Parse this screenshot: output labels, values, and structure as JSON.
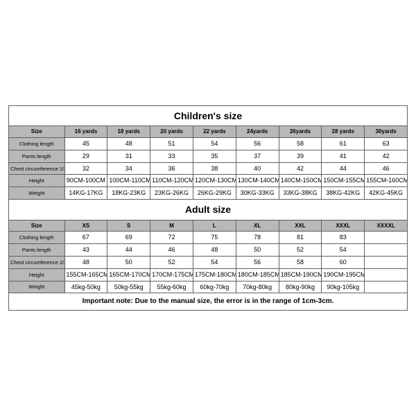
{
  "children": {
    "title": "Children's size",
    "headers": [
      "Size",
      "16 yards",
      "18 yards",
      "20 yards",
      "22 yards",
      "24yards",
      "26yards",
      "28 yards",
      "30yards"
    ],
    "rows": [
      {
        "label": "Clothing length",
        "cells": [
          "45",
          "48",
          "51",
          "54",
          "56",
          "58",
          "61",
          "63"
        ]
      },
      {
        "label": "Pants length",
        "cells": [
          "29",
          "31",
          "33",
          "35",
          "37",
          "39",
          "41",
          "42"
        ]
      },
      {
        "label": "Chest circumference 1/2",
        "cells": [
          "32",
          "34",
          "36",
          "38",
          "40",
          "42",
          "44",
          "46"
        ]
      },
      {
        "label": "Height",
        "cells": [
          "90CM-100CM",
          "100CM-110CM",
          "110CM-120CM",
          "120CM-130CM",
          "130CM-140CM",
          "140CM-150CM",
          "150CM-155CM",
          "155CM-160CM"
        ]
      },
      {
        "label": "Weight",
        "cells": [
          "14KG-17KG",
          "18KG-23KG",
          "23KG-26KG",
          "26KG-29KG",
          "30KG-33KG",
          "33KG-38KG",
          "38KG-42KG",
          "42KG-45KG"
        ]
      }
    ]
  },
  "adult": {
    "title": "Adult size",
    "headers": [
      "Size",
      "XS",
      "S",
      "M",
      "L",
      "XL",
      "XXL",
      "XXXL",
      "XXXXL"
    ],
    "rows": [
      {
        "label": "Clothing length",
        "cells": [
          "67",
          "69",
          "72",
          "75",
          "78",
          "81",
          "83",
          ""
        ]
      },
      {
        "label": "Pants length",
        "cells": [
          "43",
          "44",
          "46",
          "48",
          "50",
          "52",
          "54",
          ""
        ]
      },
      {
        "label": "Chest circumference 1/2",
        "cells": [
          "48",
          "50",
          "52",
          "54",
          "56",
          "58",
          "60",
          ""
        ]
      },
      {
        "label": "Height",
        "cells": [
          "155CM-165CM",
          "165CM-170CM",
          "170CM-175CM",
          "175CM-180CM",
          "180CM-185CM",
          "185CM-190CM",
          "190CM-195CM",
          ""
        ]
      },
      {
        "label": "Weight",
        "cells": [
          "45kg-50kg",
          "50kg-55kg",
          "55kg-60kg",
          "60kg-70kg",
          "70kg-80kg",
          "80kg-90kg",
          "90kg-105kg",
          ""
        ]
      }
    ]
  },
  "note": "Important note: Due to the manual size, the error is in the range of 1cm-3cm.",
  "style": {
    "border_color": "#606060",
    "header_bg": "#b8b8b8",
    "bg": "#ffffff",
    "text_color": "#000000"
  }
}
